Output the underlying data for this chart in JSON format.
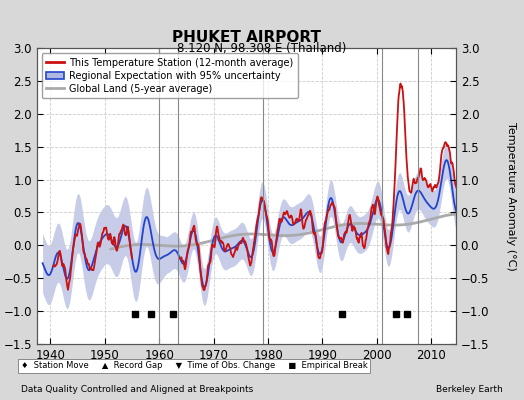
{
  "title": "PHUKET AIRPORT",
  "subtitle": "8.120 N, 98.308 E (Thailand)",
  "ylabel": "Temperature Anomaly (°C)",
  "xlabel_left": "Data Quality Controlled and Aligned at Breakpoints",
  "xlabel_right": "Berkeley Earth",
  "ylim": [
    -1.5,
    3.0
  ],
  "xlim": [
    1937.5,
    2014.5
  ],
  "yticks": [
    -1.5,
    -1.0,
    -0.5,
    0.0,
    0.5,
    1.0,
    1.5,
    2.0,
    2.5,
    3.0
  ],
  "xticks": [
    1940,
    1950,
    1960,
    1970,
    1980,
    1990,
    2000,
    2010
  ],
  "bg_color": "#d8d8d8",
  "plot_bg_color": "#ffffff",
  "legend_entries": [
    "This Temperature Station (12-month average)",
    "Regional Expectation with 95% uncertainty",
    "Global Land (5-year average)"
  ],
  "vertical_line_years": [
    1960.0,
    1963.5,
    1979.0,
    2001.0,
    2007.5
  ],
  "empirical_break_x": [
    1955.5,
    1958.5,
    1962.5,
    1993.5,
    2003.5,
    2005.5
  ],
  "empirical_break_y": -1.05,
  "obs_change_x": [],
  "obs_change_y": -1.05
}
